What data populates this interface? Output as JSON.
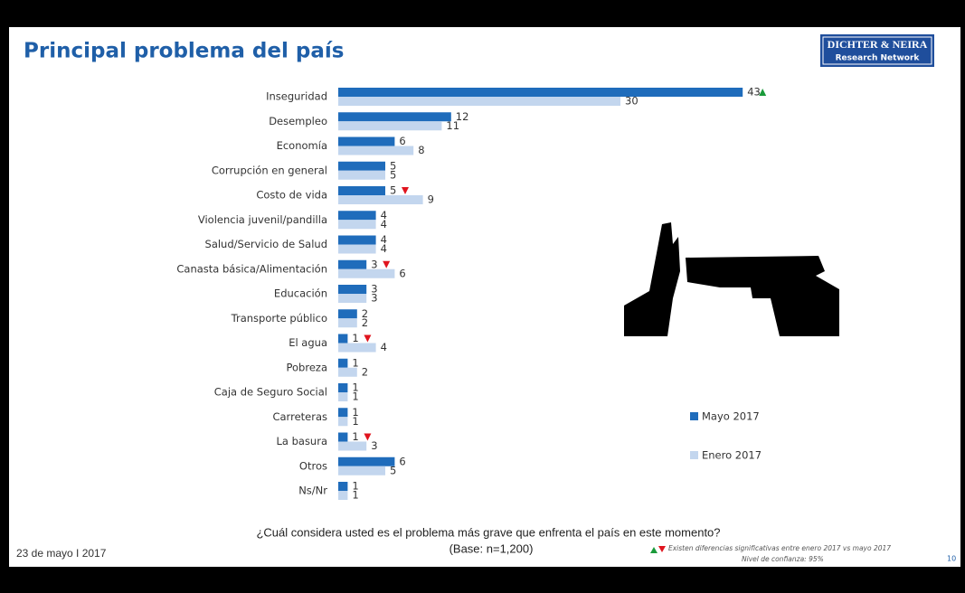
{
  "header": {
    "title": "Principal problema del país",
    "logo_name": "DICHTER & NEIRA",
    "logo_sub": "Research Network"
  },
  "chart_data": {
    "type": "bar",
    "orientation": "horizontal",
    "categories": [
      "Inseguridad",
      "Desempleo",
      "Economía",
      "Corrupción en general",
      "Costo de vida",
      "Violencia juvenil/pandilla",
      "Salud/Servicio de Salud",
      "Canasta básica/Alimentación",
      "Educación",
      "Transporte público",
      "El agua",
      "Pobreza",
      "Caja de Seguro Social",
      "Carreteras",
      "La basura",
      "Otros",
      "Ns/Nr"
    ],
    "series": [
      {
        "name": "Mayo  2017",
        "color": "#1f6cbb",
        "values": [
          43,
          12,
          6,
          5,
          5,
          4,
          4,
          3,
          3,
          2,
          1,
          1,
          1,
          1,
          1,
          6,
          1
        ]
      },
      {
        "name": "Enero 2017",
        "color": "#c3d6ee",
        "values": [
          30,
          11,
          8,
          5,
          9,
          4,
          4,
          6,
          3,
          2,
          4,
          2,
          1,
          1,
          3,
          5,
          1
        ]
      }
    ],
    "significance": [
      "up",
      null,
      null,
      null,
      "down",
      null,
      null,
      "down",
      null,
      null,
      "down",
      null,
      null,
      null,
      "down",
      null,
      null
    ],
    "significance_colors": {
      "up": "#1a9a3a",
      "down": "#e0141e"
    }
  },
  "footer": {
    "question": "¿Cuál considera usted es el problema más grave que enfrenta el país en este momento?",
    "base": "(Base: n=1,200)",
    "date": "23 de mayo I  2017",
    "note": "Existen diferencias significativas entre enero 2017 vs mayo 2017",
    "confidence": "Nivel de confianza: 95%",
    "page": "10"
  }
}
